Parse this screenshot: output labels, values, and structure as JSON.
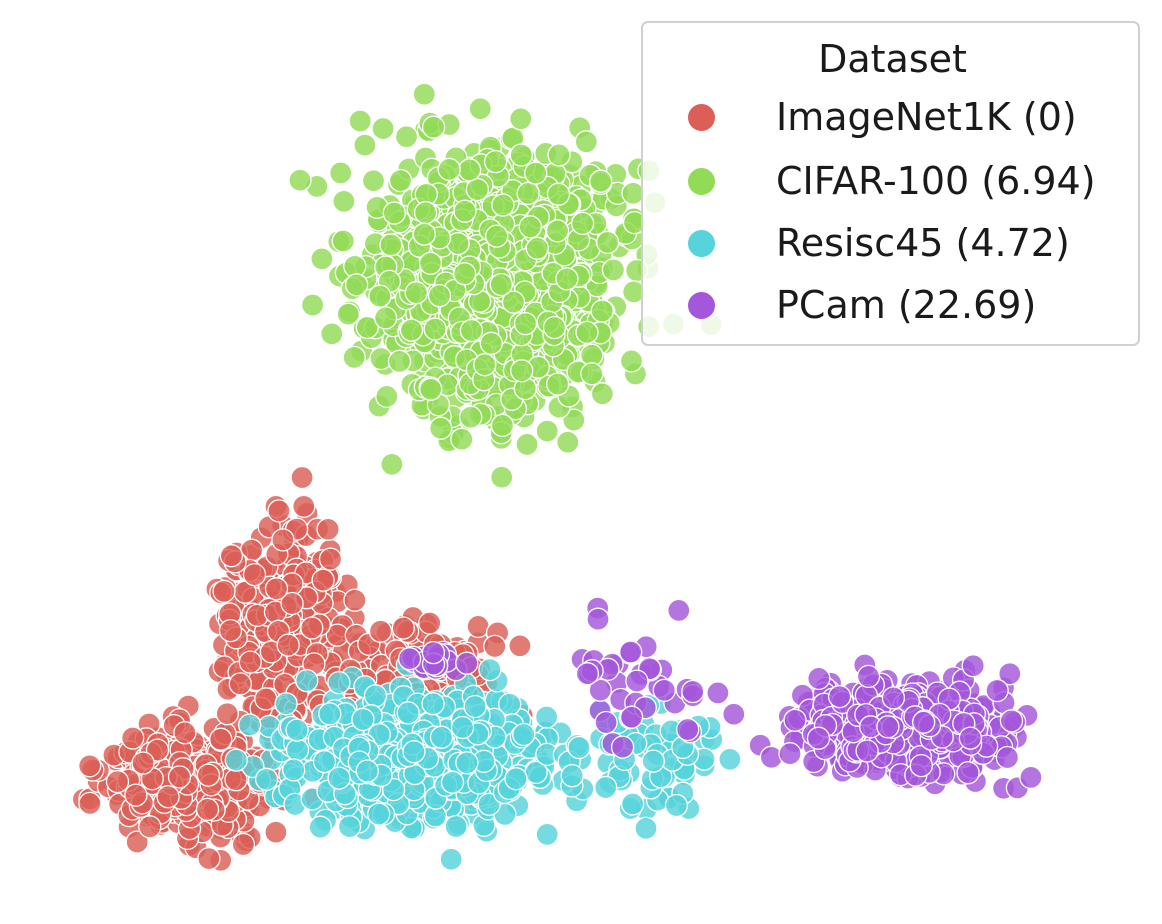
{
  "chart_data": {
    "type": "scatter",
    "title": "",
    "xlabel": "",
    "ylabel": "",
    "axes_visible": false,
    "grid": false,
    "xlim": [
      0,
      100
    ],
    "ylim": [
      0,
      80
    ],
    "legend": {
      "title": "Dataset",
      "placement": "top-right"
    },
    "series": [
      {
        "name": "ImageNet1K (0)",
        "color": "#db5f57",
        "clusters": [
          {
            "center": [
              13,
              9.5
            ],
            "spread": [
              6.5,
              4.3
            ],
            "count": 520
          },
          {
            "center": [
              22,
              24
            ],
            "spread": [
              5,
              8
            ],
            "count": 400
          },
          {
            "center": [
              35,
              18
            ],
            "spread": [
              7,
              6
            ],
            "count": 200
          }
        ]
      },
      {
        "name": "CIFAR-100 (6.94)",
        "color": "#91db57",
        "clusters": [
          {
            "center": [
              41.5,
              57
            ],
            "spread": [
              10,
              10.5
            ],
            "count": 1250
          }
        ]
      },
      {
        "name": "Resisc45 (4.72)",
        "color": "#57d3db",
        "clusters": [
          {
            "center": [
              34,
              12
            ],
            "spread": [
              11,
              5
            ],
            "count": 720
          },
          {
            "center": [
              56,
              12
            ],
            "spread": [
              6,
              4
            ],
            "count": 70
          }
        ]
      },
      {
        "name": "PCam (22.69)",
        "color": "#a357db",
        "clusters": [
          {
            "center": [
              81,
              14.5
            ],
            "spread": [
              8.5,
              4
            ],
            "count": 520
          },
          {
            "center": [
              36,
              21
            ],
            "spread": [
              3,
              1
            ],
            "count": 20
          },
          {
            "center": [
              55,
              19
            ],
            "spread": [
              7,
              5
            ],
            "count": 40
          }
        ]
      }
    ]
  }
}
